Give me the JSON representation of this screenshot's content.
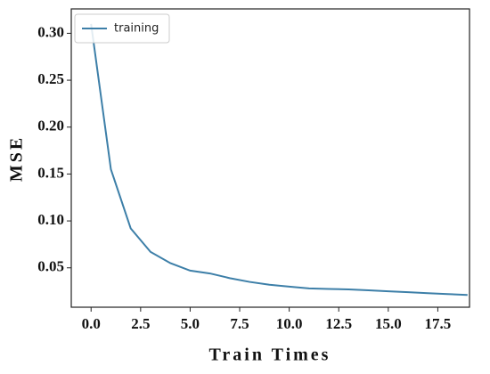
{
  "chart_data": {
    "type": "line",
    "x_label": "Train Times",
    "y_label": "MSE",
    "x": [
      0,
      1,
      2,
      3,
      4,
      5,
      6,
      7,
      8,
      9,
      10,
      11,
      12,
      13,
      14,
      15,
      16,
      17,
      18,
      19
    ],
    "series": [
      {
        "name": "training",
        "color": "#3d7fa8",
        "values": [
          0.31,
          0.155,
          0.092,
          0.067,
          0.055,
          0.047,
          0.044,
          0.039,
          0.035,
          0.032,
          0.03,
          0.028,
          0.0275,
          0.027,
          0.026,
          0.025,
          0.024,
          0.023,
          0.022,
          0.021
        ]
      }
    ],
    "xlim": [
      -1.0,
      19.1
    ],
    "ylim": [
      0.008,
      0.326
    ],
    "xticks": [
      {
        "value": 0,
        "label": "0.0"
      },
      2.5,
      {
        "value": 5,
        "label": "5.0"
      },
      7.5,
      {
        "value": 10,
        "label": "10.0"
      },
      12.5,
      {
        "value": 15,
        "label": "15.0"
      },
      17.5
    ],
    "yticks": [
      0.05,
      {
        "value": 0.1,
        "label": "0.10"
      },
      0.15,
      {
        "value": 0.2,
        "label": "0.20"
      },
      0.25,
      {
        "value": 0.3,
        "label": "0.30"
      }
    ],
    "legend": "upper left",
    "grid": false
  }
}
